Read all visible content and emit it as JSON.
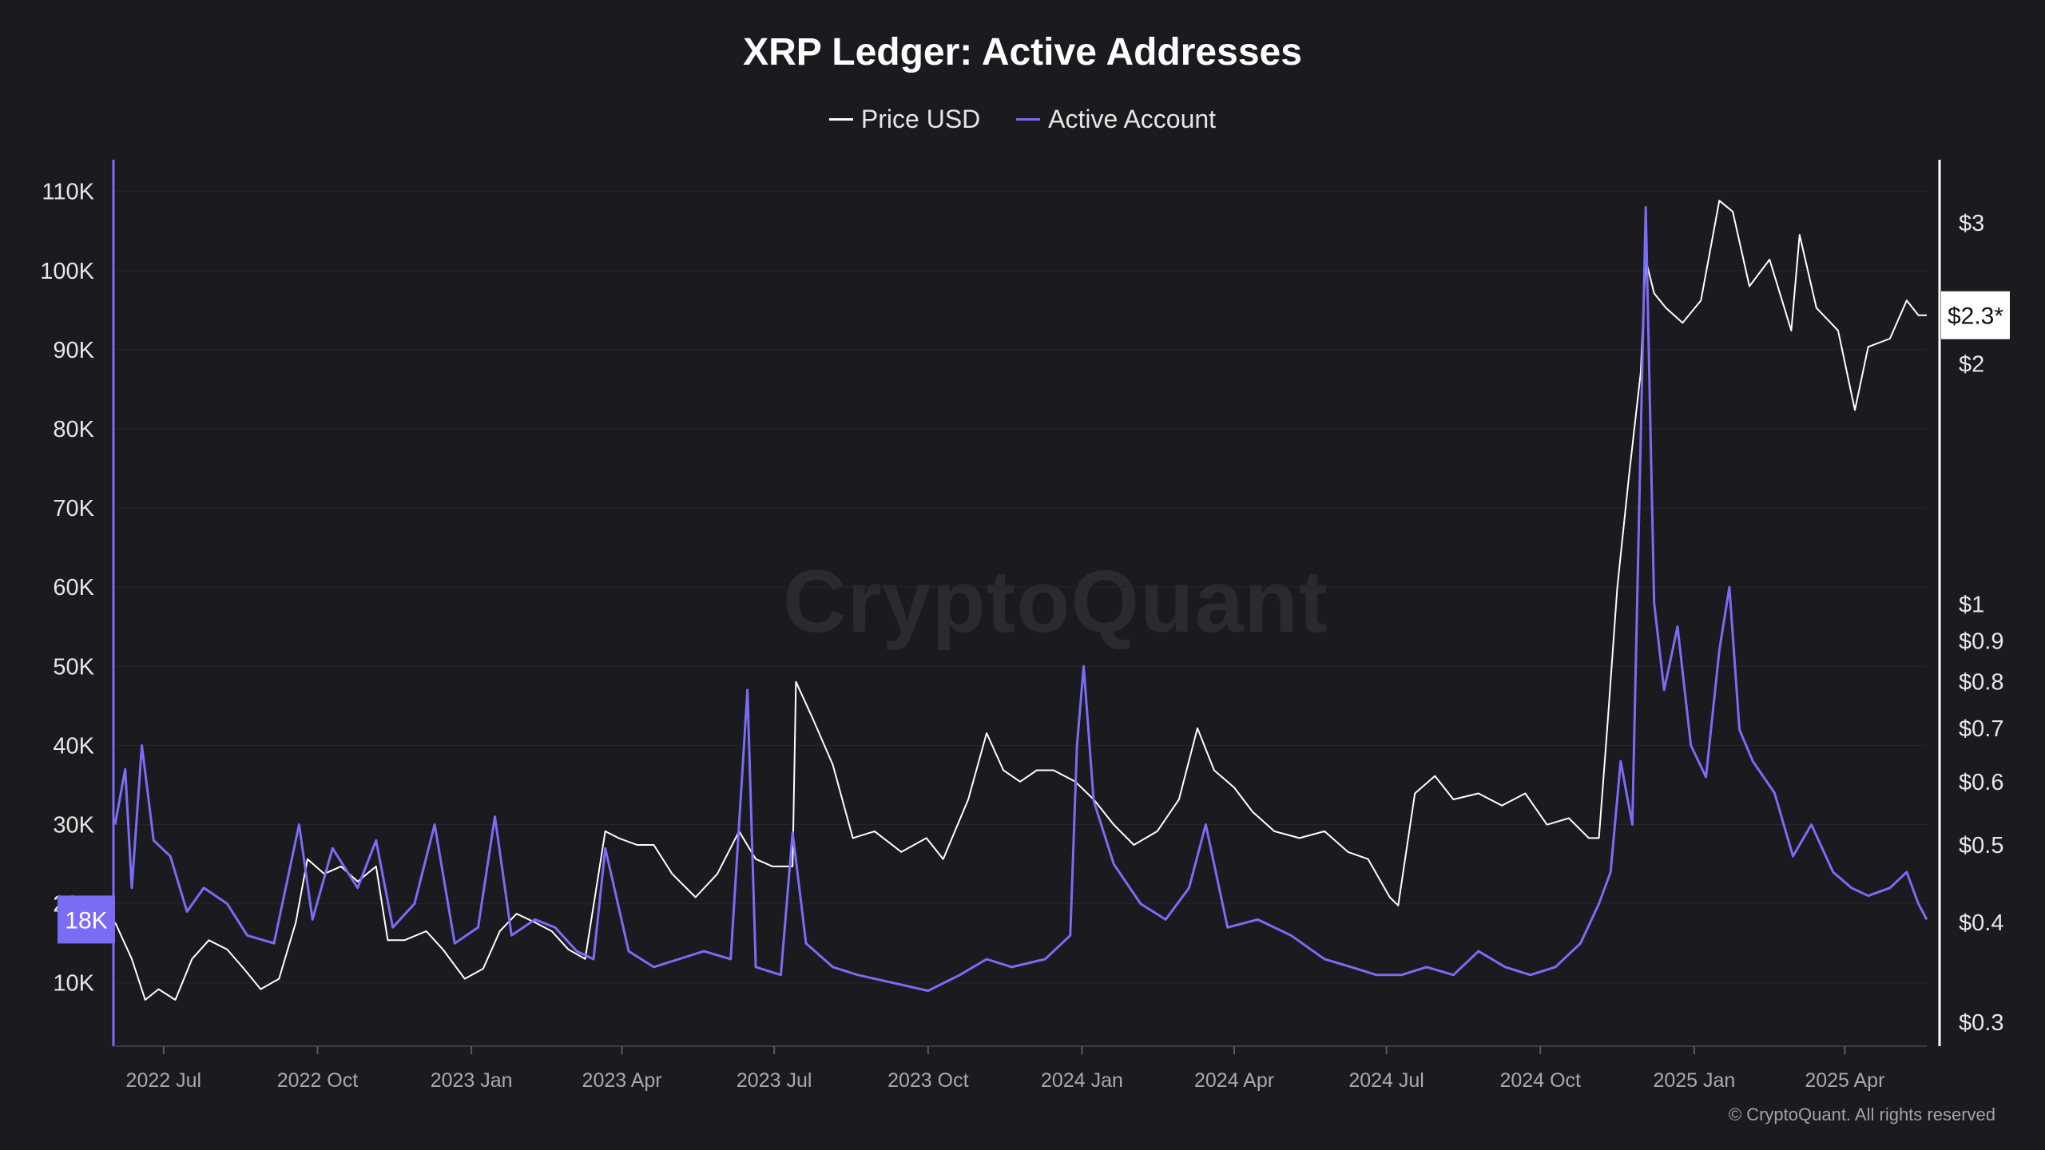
{
  "chart_data": {
    "type": "line",
    "title": "XRP Ledger: Active Addresses",
    "legend_position": "top-center",
    "grid": true,
    "x_ticks": [
      "2022 Jul",
      "2022 Oct",
      "2023 Jan",
      "2023 Apr",
      "2023 Jul",
      "2023 Oct",
      "2024 Jan",
      "2024 Apr",
      "2024 Jul",
      "2024 Oct",
      "2025 Jan",
      "2025 Apr"
    ],
    "x_range": [
      "2022-06-01",
      "2025-05-20"
    ],
    "y_left": {
      "ticks": [
        "10K",
        "20K",
        "30K",
        "40K",
        "50K",
        "60K",
        "70K",
        "80K",
        "90K",
        "100K",
        "110K"
      ],
      "tick_values": [
        10000,
        20000,
        30000,
        40000,
        50000,
        60000,
        70000,
        80000,
        90000,
        100000,
        110000
      ],
      "range": [
        2000,
        114000
      ],
      "scale": "linear"
    },
    "y_right": {
      "ticks": [
        "$0.3",
        "$0.4",
        "$0.5",
        "$0.6",
        "$0.7",
        "$0.8",
        "$0.9",
        "$1",
        "$2",
        "$3"
      ],
      "tick_values": [
        0.3,
        0.4,
        0.5,
        0.6,
        0.7,
        0.8,
        0.9,
        1,
        2,
        3
      ],
      "range": [
        0.28,
        3.6
      ],
      "scale": "log"
    },
    "current_badges": {
      "left": {
        "label": "18K",
        "value": 18000,
        "color": "#7b6cf6"
      },
      "right": {
        "label": "$2.3*",
        "value": 2.3
      }
    },
    "series": [
      {
        "name": "Price USD",
        "axis": "right",
        "color": "#ffffff",
        "points": [
          [
            "2022-06-02",
            0.4
          ],
          [
            "2022-06-12",
            0.36
          ],
          [
            "2022-06-20",
            0.32
          ],
          [
            "2022-06-28",
            0.33
          ],
          [
            "2022-07-08",
            0.32
          ],
          [
            "2022-07-18",
            0.36
          ],
          [
            "2022-07-28",
            0.38
          ],
          [
            "2022-08-08",
            0.37
          ],
          [
            "2022-08-18",
            0.35
          ],
          [
            "2022-08-28",
            0.33
          ],
          [
            "2022-09-08",
            0.34
          ],
          [
            "2022-09-18",
            0.4
          ],
          [
            "2022-09-25",
            0.48
          ],
          [
            "2022-10-05",
            0.46
          ],
          [
            "2022-10-15",
            0.47
          ],
          [
            "2022-10-25",
            0.45
          ],
          [
            "2022-11-05",
            0.47
          ],
          [
            "2022-11-12",
            0.38
          ],
          [
            "2022-11-22",
            0.38
          ],
          [
            "2022-12-05",
            0.39
          ],
          [
            "2022-12-15",
            0.37
          ],
          [
            "2022-12-28",
            0.34
          ],
          [
            "2023-01-08",
            0.35
          ],
          [
            "2023-01-18",
            0.39
          ],
          [
            "2023-01-28",
            0.41
          ],
          [
            "2023-02-08",
            0.4
          ],
          [
            "2023-02-18",
            0.39
          ],
          [
            "2023-02-28",
            0.37
          ],
          [
            "2023-03-10",
            0.36
          ],
          [
            "2023-03-22",
            0.52
          ],
          [
            "2023-03-30",
            0.51
          ],
          [
            "2023-04-10",
            0.5
          ],
          [
            "2023-04-20",
            0.5
          ],
          [
            "2023-05-01",
            0.46
          ],
          [
            "2023-05-15",
            0.43
          ],
          [
            "2023-05-28",
            0.46
          ],
          [
            "2023-06-10",
            0.52
          ],
          [
            "2023-06-20",
            0.48
          ],
          [
            "2023-06-30",
            0.47
          ],
          [
            "2023-07-12",
            0.47
          ],
          [
            "2023-07-14",
            0.8
          ],
          [
            "2023-07-24",
            0.72
          ],
          [
            "2023-08-05",
            0.63
          ],
          [
            "2023-08-17",
            0.51
          ],
          [
            "2023-08-30",
            0.52
          ],
          [
            "2023-09-15",
            0.49
          ],
          [
            "2023-09-30",
            0.51
          ],
          [
            "2023-10-10",
            0.48
          ],
          [
            "2023-10-25",
            0.57
          ],
          [
            "2023-11-05",
            0.69
          ],
          [
            "2023-11-15",
            0.62
          ],
          [
            "2023-11-25",
            0.6
          ],
          [
            "2023-12-05",
            0.62
          ],
          [
            "2023-12-15",
            0.62
          ],
          [
            "2023-12-28",
            0.6
          ],
          [
            "2024-01-08",
            0.57
          ],
          [
            "2024-01-20",
            0.53
          ],
          [
            "2024-02-01",
            0.5
          ],
          [
            "2024-02-15",
            0.52
          ],
          [
            "2024-02-28",
            0.57
          ],
          [
            "2024-03-10",
            0.7
          ],
          [
            "2024-03-20",
            0.62
          ],
          [
            "2024-04-01",
            0.59
          ],
          [
            "2024-04-12",
            0.55
          ],
          [
            "2024-04-25",
            0.52
          ],
          [
            "2024-05-10",
            0.51
          ],
          [
            "2024-05-25",
            0.52
          ],
          [
            "2024-06-08",
            0.49
          ],
          [
            "2024-06-20",
            0.48
          ],
          [
            "2024-07-03",
            0.43
          ],
          [
            "2024-07-08",
            0.42
          ],
          [
            "2024-07-18",
            0.58
          ],
          [
            "2024-07-30",
            0.61
          ],
          [
            "2024-08-10",
            0.57
          ],
          [
            "2024-08-25",
            0.58
          ],
          [
            "2024-09-08",
            0.56
          ],
          [
            "2024-09-22",
            0.58
          ],
          [
            "2024-10-05",
            0.53
          ],
          [
            "2024-10-18",
            0.54
          ],
          [
            "2024-10-30",
            0.51
          ],
          [
            "2024-11-05",
            0.51
          ],
          [
            "2024-11-10",
            0.7
          ],
          [
            "2024-11-16",
            1.05
          ],
          [
            "2024-11-23",
            1.45
          ],
          [
            "2024-11-30",
            1.95
          ],
          [
            "2024-12-03",
            2.7
          ],
          [
            "2024-12-08",
            2.45
          ],
          [
            "2024-12-15",
            2.35
          ],
          [
            "2024-12-25",
            2.25
          ],
          [
            "2025-01-05",
            2.4
          ],
          [
            "2025-01-16",
            3.2
          ],
          [
            "2025-01-24",
            3.1
          ],
          [
            "2025-02-03",
            2.5
          ],
          [
            "2025-02-15",
            2.7
          ],
          [
            "2025-02-28",
            2.2
          ],
          [
            "2025-03-05",
            2.9
          ],
          [
            "2025-03-15",
            2.35
          ],
          [
            "2025-03-28",
            2.2
          ],
          [
            "2025-04-07",
            1.75
          ],
          [
            "2025-04-15",
            2.1
          ],
          [
            "2025-04-28",
            2.15
          ],
          [
            "2025-05-08",
            2.4
          ],
          [
            "2025-05-15",
            2.3
          ],
          [
            "2025-05-20",
            2.3
          ]
        ]
      },
      {
        "name": "Active Account",
        "axis": "left",
        "color": "#7b6cf6",
        "points": [
          [
            "2022-06-02",
            30000
          ],
          [
            "2022-06-08",
            37000
          ],
          [
            "2022-06-12",
            22000
          ],
          [
            "2022-06-18",
            40000
          ],
          [
            "2022-06-25",
            28000
          ],
          [
            "2022-07-05",
            26000
          ],
          [
            "2022-07-15",
            19000
          ],
          [
            "2022-07-25",
            22000
          ],
          [
            "2022-08-08",
            20000
          ],
          [
            "2022-08-20",
            16000
          ],
          [
            "2022-09-05",
            15000
          ],
          [
            "2022-09-20",
            30000
          ],
          [
            "2022-09-28",
            18000
          ],
          [
            "2022-10-10",
            27000
          ],
          [
            "2022-10-25",
            22000
          ],
          [
            "2022-11-05",
            28000
          ],
          [
            "2022-11-15",
            17000
          ],
          [
            "2022-11-28",
            20000
          ],
          [
            "2022-12-10",
            30000
          ],
          [
            "2022-12-22",
            15000
          ],
          [
            "2023-01-05",
            17000
          ],
          [
            "2023-01-15",
            31000
          ],
          [
            "2023-01-25",
            16000
          ],
          [
            "2023-02-08",
            18000
          ],
          [
            "2023-02-20",
            17000
          ],
          [
            "2023-03-05",
            14000
          ],
          [
            "2023-03-15",
            13000
          ],
          [
            "2023-03-22",
            27000
          ],
          [
            "2023-04-05",
            14000
          ],
          [
            "2023-04-20",
            12000
          ],
          [
            "2023-05-05",
            13000
          ],
          [
            "2023-05-20",
            14000
          ],
          [
            "2023-06-05",
            13000
          ],
          [
            "2023-06-15",
            47000
          ],
          [
            "2023-06-20",
            12000
          ],
          [
            "2023-07-05",
            11000
          ],
          [
            "2023-07-12",
            29000
          ],
          [
            "2023-07-20",
            15000
          ],
          [
            "2023-08-05",
            12000
          ],
          [
            "2023-08-20",
            11000
          ],
          [
            "2023-09-10",
            10000
          ],
          [
            "2023-10-01",
            9000
          ],
          [
            "2023-10-20",
            11000
          ],
          [
            "2023-11-05",
            13000
          ],
          [
            "2023-11-20",
            12000
          ],
          [
            "2023-12-10",
            13000
          ],
          [
            "2023-12-25",
            16000
          ],
          [
            "2023-12-29",
            40000
          ],
          [
            "2024-01-02",
            50000
          ],
          [
            "2024-01-08",
            33000
          ],
          [
            "2024-01-20",
            25000
          ],
          [
            "2024-02-05",
            20000
          ],
          [
            "2024-02-20",
            18000
          ],
          [
            "2024-03-05",
            22000
          ],
          [
            "2024-03-15",
            30000
          ],
          [
            "2024-03-28",
            17000
          ],
          [
            "2024-04-15",
            18000
          ],
          [
            "2024-05-05",
            16000
          ],
          [
            "2024-05-25",
            13000
          ],
          [
            "2024-06-10",
            12000
          ],
          [
            "2024-06-25",
            11000
          ],
          [
            "2024-07-10",
            11000
          ],
          [
            "2024-07-25",
            12000
          ],
          [
            "2024-08-10",
            11000
          ],
          [
            "2024-08-25",
            14000
          ],
          [
            "2024-09-10",
            12000
          ],
          [
            "2024-09-25",
            11000
          ],
          [
            "2024-10-10",
            12000
          ],
          [
            "2024-10-25",
            15000
          ],
          [
            "2024-11-05",
            20000
          ],
          [
            "2024-11-12",
            24000
          ],
          [
            "2024-11-18",
            38000
          ],
          [
            "2024-11-25",
            30000
          ],
          [
            "2024-12-03",
            108000
          ],
          [
            "2024-12-08",
            58000
          ],
          [
            "2024-12-14",
            47000
          ],
          [
            "2024-12-22",
            55000
          ],
          [
            "2024-12-30",
            40000
          ],
          [
            "2025-01-08",
            36000
          ],
          [
            "2025-01-16",
            52000
          ],
          [
            "2025-01-22",
            60000
          ],
          [
            "2025-01-28",
            42000
          ],
          [
            "2025-02-05",
            38000
          ],
          [
            "2025-02-18",
            34000
          ],
          [
            "2025-03-01",
            26000
          ],
          [
            "2025-03-12",
            30000
          ],
          [
            "2025-03-25",
            24000
          ],
          [
            "2025-04-05",
            22000
          ],
          [
            "2025-04-15",
            21000
          ],
          [
            "2025-04-28",
            22000
          ],
          [
            "2025-05-08",
            24000
          ],
          [
            "2025-05-15",
            20000
          ],
          [
            "2025-05-20",
            18000
          ]
        ]
      }
    ],
    "watermark": "CryptoQuant",
    "copyright": "© CryptoQuant. All rights reserved"
  }
}
